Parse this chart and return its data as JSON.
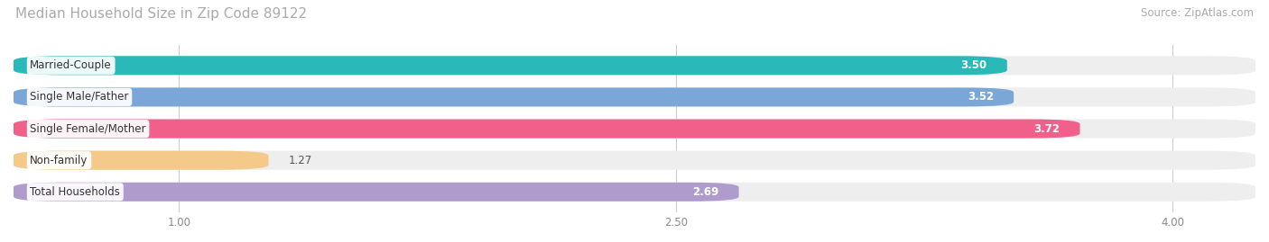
{
  "title": "Median Household Size in Zip Code 89122",
  "source": "Source: ZipAtlas.com",
  "categories": [
    "Married-Couple",
    "Single Male/Father",
    "Single Female/Mother",
    "Non-family",
    "Total Households"
  ],
  "values": [
    3.5,
    3.52,
    3.72,
    1.27,
    2.69
  ],
  "bar_colors": [
    "#2ab8b8",
    "#7ba7d8",
    "#f0608a",
    "#f5c98a",
    "#b09ccc"
  ],
  "xlim_min": 0.5,
  "xlim_max": 4.25,
  "xdata_min": 0.5,
  "xticks": [
    1.0,
    2.5,
    4.0
  ],
  "title_fontsize": 11,
  "source_fontsize": 8.5,
  "label_fontsize": 8.5,
  "value_fontsize": 8.5,
  "bar_height": 0.6,
  "bar_gap": 1.0,
  "background_color": "#ffffff",
  "bg_bar_color": "#eeeeee"
}
